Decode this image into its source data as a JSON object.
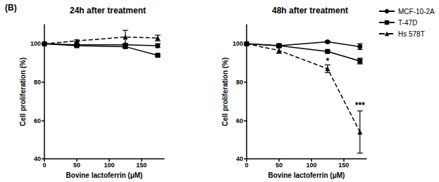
{
  "panel_label": "(B)",
  "chart_data": [
    {
      "type": "line",
      "title": "24h after treatment",
      "x_label": "Bovine lactoferrin (μM)",
      "y_label": "Cell proliferation (%)",
      "x": [
        0,
        50,
        125,
        175
      ],
      "xlim": [
        0,
        185
      ],
      "xticks": [
        0,
        50,
        100,
        150
      ],
      "ylim": [
        40,
        110
      ],
      "yticks": [
        40,
        60,
        80,
        100
      ],
      "grid": false,
      "series": [
        {
          "name": "MCF-10-2A",
          "color": "#000000",
          "marker": "circle",
          "line_style": "solid",
          "values": [
            100,
            99.5,
            99.5,
            99
          ],
          "errors": [
            0,
            0.5,
            0.5,
            1
          ]
        },
        {
          "name": "T-47D",
          "color": "#000000",
          "marker": "square",
          "line_style": "solid",
          "values": [
            100,
            99,
            98.5,
            94
          ],
          "errors": [
            0,
            0.5,
            0.5,
            0.5
          ]
        },
        {
          "name": "Hs 578T",
          "color": "#000000",
          "marker": "triangle",
          "line_style": "dashed",
          "values": [
            100,
            101.5,
            103.5,
            103
          ],
          "errors": [
            0,
            0.5,
            3.5,
            1.5
          ]
        }
      ]
    },
    {
      "type": "line",
      "title": "48h after treatment",
      "x_label": "Bovine lactoferrin (μM)",
      "y_label": "Cell proliferation (%)",
      "x": [
        0,
        50,
        125,
        175
      ],
      "xlim": [
        0,
        185
      ],
      "xticks": [
        0,
        50,
        100,
        150
      ],
      "ylim": [
        40,
        110
      ],
      "yticks": [
        40,
        60,
        80,
        100
      ],
      "grid": false,
      "legend": "right",
      "series": [
        {
          "name": "MCF-10-2A",
          "color": "#000000",
          "marker": "circle",
          "line_style": "solid",
          "values": [
            100,
            99,
            101,
            98.5
          ],
          "errors": [
            0,
            0.5,
            0.5,
            1.5
          ]
        },
        {
          "name": "T-47D",
          "color": "#000000",
          "marker": "square",
          "line_style": "solid",
          "values": [
            100,
            99,
            96,
            91
          ],
          "errors": [
            0,
            1,
            0.5,
            1.5
          ]
        },
        {
          "name": "Hs 578T",
          "color": "#000000",
          "marker": "triangle",
          "line_style": "dashed",
          "values": [
            100,
            96.5,
            87,
            54
          ],
          "errors": [
            0,
            1.5,
            2,
            11
          ]
        }
      ],
      "annotations": [
        {
          "x": 125,
          "y": 91,
          "text": "*"
        },
        {
          "x": 175,
          "y": 68,
          "text": "***"
        }
      ]
    }
  ]
}
